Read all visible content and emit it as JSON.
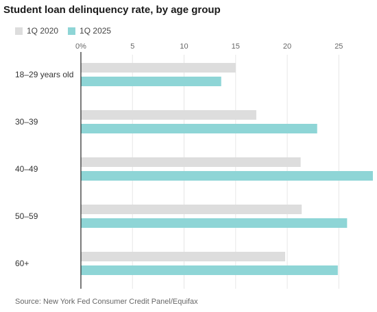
{
  "chart_data": {
    "type": "bar",
    "orientation": "horizontal",
    "title": "Student loan delinquency rate, by age group",
    "categories": [
      "18–29 years old",
      "30–39",
      "40–49",
      "50–59",
      "60+"
    ],
    "series": [
      {
        "name": "1Q 2020",
        "color": "#dddddd",
        "values": [
          15.0,
          17.0,
          21.3,
          21.4,
          19.8
        ]
      },
      {
        "name": "1Q 2025",
        "color": "#8ed5d6",
        "values": [
          13.6,
          22.9,
          28.3,
          25.8,
          24.9
        ]
      }
    ],
    "xlim": [
      0,
      28.3
    ],
    "xticks": [
      0,
      5,
      10,
      15,
      20,
      25
    ],
    "xtick_labels": [
      "0%",
      "5",
      "10",
      "15",
      "20",
      "25"
    ],
    "xlabel": "",
    "ylabel": "",
    "grid": true,
    "legend_placement": "top-left",
    "source": "Source: New York Fed Consumer Credit Panel/Equifax"
  }
}
